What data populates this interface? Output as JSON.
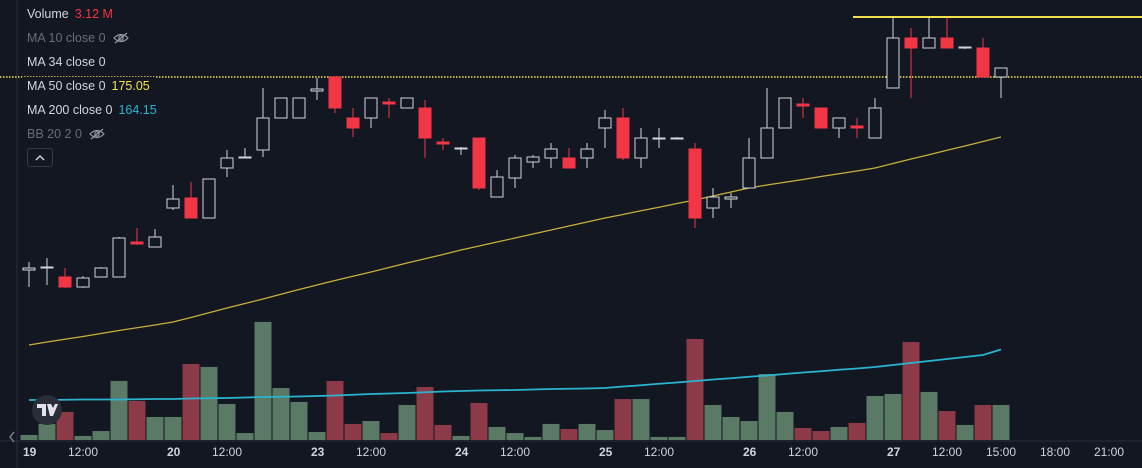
{
  "chart_data": {
    "type": "candlestick",
    "categories": [
      "19",
      null,
      null,
      "12:00",
      null,
      null,
      null,
      null,
      "20",
      null,
      null,
      "12:00",
      null,
      null,
      null,
      null,
      "23",
      null,
      null,
      "12:00",
      null,
      null,
      null,
      null,
      "24",
      null,
      null,
      "12:00",
      null,
      null,
      null,
      null,
      "25",
      null,
      null,
      "12:00",
      null,
      null,
      null,
      null,
      "26",
      null,
      null,
      "12:00",
      null,
      null,
      null,
      null,
      "27",
      null,
      null,
      "12:00",
      null,
      null,
      "15:00"
    ],
    "future_ticks": [
      "18:00",
      "21:00"
    ],
    "open": [
      167.33,
      167.41,
      167.05,
      166.65,
      167.05,
      167.05,
      168.45,
      168.25,
      169.81,
      170.21,
      169.41,
      171.41,
      171.81,
      172.13,
      173.41,
      173.41,
      174.49,
      175.05,
      173.41,
      173.41,
      174.05,
      173.81,
      173.81,
      172.45,
      172.17,
      172.61,
      170.25,
      171.01,
      171.65,
      171.81,
      171.81,
      171.81,
      173.01,
      173.41,
      171.81,
      172.57,
      172.57,
      172.17,
      169.81,
      170.17,
      170.61,
      171.81,
      173.01,
      173.97,
      173.81,
      173.01,
      173.09,
      172.61,
      174.61,
      176.61,
      176.21,
      176.61,
      176.21,
      176.21,
      175.05
    ],
    "high": [
      167.65,
      167.81,
      167.41,
      167.09,
      167.45,
      168.65,
      169.01,
      168.97,
      170.73,
      170.85,
      170.97,
      172.13,
      172.21,
      174.61,
      174.21,
      174.21,
      175.01,
      175.05,
      173.81,
      174.21,
      174.21,
      174.21,
      174.13,
      172.61,
      172.25,
      172.61,
      171.33,
      171.93,
      171.93,
      172.41,
      172.21,
      172.41,
      173.73,
      173.81,
      173.01,
      173.01,
      172.65,
      172.41,
      170.61,
      170.41,
      172.61,
      174.61,
      174.21,
      174.21,
      173.81,
      173.41,
      173.41,
      174.21,
      177.41,
      177.01,
      177.41,
      177.41,
      176.25,
      176.61,
      175.41
    ],
    "low": [
      166.65,
      166.73,
      166.61,
      166.61,
      167.05,
      167.05,
      168.33,
      168.25,
      169.73,
      169.41,
      169.41,
      171.05,
      171.81,
      171.85,
      173.41,
      173.41,
      174.13,
      173.61,
      172.65,
      173.01,
      173.41,
      173.81,
      171.81,
      172.13,
      171.93,
      170.53,
      170.25,
      170.61,
      171.41,
      171.41,
      171.41,
      171.41,
      172.21,
      171.73,
      171.41,
      172.21,
      172.57,
      169.01,
      169.41,
      169.81,
      170.61,
      171.81,
      173.01,
      173.41,
      173.01,
      172.61,
      172.61,
      172.61,
      174.61,
      174.21,
      176.21,
      176.21,
      176.17,
      175.05,
      174.21
    ],
    "close": [
      167.41,
      167.45,
      166.65,
      167.01,
      167.41,
      168.61,
      168.37,
      168.65,
      170.17,
      169.41,
      170.97,
      171.81,
      171.85,
      173.41,
      174.21,
      174.21,
      174.57,
      173.81,
      173.01,
      174.21,
      173.97,
      174.21,
      172.61,
      172.37,
      172.21,
      170.61,
      171.05,
      171.81,
      171.85,
      172.17,
      171.41,
      172.17,
      173.41,
      171.81,
      172.61,
      172.61,
      172.61,
      169.41,
      170.25,
      170.25,
      171.81,
      173.01,
      174.21,
      173.89,
      173.01,
      173.41,
      173.01,
      173.81,
      176.61,
      176.21,
      176.61,
      176.21,
      176.25,
      175.05,
      175.41
    ],
    "ylim": [
      160.53,
      178.13
    ],
    "up_color": "#d1d4dc",
    "down_color": "#f23645",
    "volume": {
      "values": [
        0.45,
        1.43,
        2.5,
        0.36,
        0.8,
        5.26,
        3.48,
        2.05,
        2.05,
        6.77,
        6.51,
        3.21,
        0.62,
        10.52,
        4.63,
        3.39,
        0.71,
        5.26,
        1.43,
        1.69,
        0.62,
        3.12,
        4.72,
        1.34,
        0.36,
        3.3,
        1.16,
        0.62,
        0.27,
        1.43,
        0.98,
        1.43,
        0.89,
        3.65,
        3.65,
        0.27,
        0.27,
        9.0,
        3.12,
        2.05,
        1.69,
        5.88,
        2.5,
        1.07,
        0.8,
        1.16,
        1.52,
        3.92,
        4.1,
        8.73,
        4.28,
        2.58,
        1.34,
        3.12,
        3.12
      ],
      "ylim": [
        0,
        39.2
      ],
      "up_color": "#5b7a66",
      "down_color": "#8c3a48"
    },
    "lines": [
      {
        "color": "#c9b03c",
        "values": [
          164.33,
          164.45,
          164.56,
          164.67,
          164.79,
          164.91,
          165.02,
          165.13,
          165.25,
          165.43,
          165.62,
          165.81,
          165.99,
          166.17,
          166.36,
          166.55,
          166.73,
          166.91,
          167.08,
          167.25,
          167.43,
          167.61,
          167.78,
          167.95,
          168.13,
          168.29,
          168.45,
          168.61,
          168.77,
          168.93,
          169.09,
          169.25,
          169.41,
          169.55,
          169.7,
          169.84,
          169.99,
          170.13,
          170.29,
          170.45,
          170.61,
          170.73,
          170.84,
          170.95,
          171.07,
          171.18,
          171.29,
          171.41,
          171.59,
          171.77,
          171.94,
          172.12,
          172.29,
          172.47,
          172.65
        ]
      },
      {
        "color": "#2bb4d0",
        "values": [
          162.13,
          162.13,
          162.14,
          162.15,
          162.15,
          162.15,
          162.16,
          162.17,
          162.17,
          162.19,
          162.2,
          162.21,
          162.23,
          162.25,
          162.26,
          162.27,
          162.29,
          162.31,
          162.34,
          162.37,
          162.39,
          162.41,
          162.44,
          162.47,
          162.49,
          162.51,
          162.52,
          162.53,
          162.55,
          162.57,
          162.58,
          162.59,
          162.61,
          162.67,
          162.72,
          162.78,
          162.83,
          162.89,
          162.95,
          163.0,
          163.06,
          163.11,
          163.17,
          163.23,
          163.28,
          163.34,
          163.39,
          163.45,
          163.53,
          163.61,
          163.69,
          163.77,
          163.85,
          163.93,
          164.15
        ]
      }
    ],
    "hlines": [
      {
        "value": 177.45,
        "style": "solid",
        "color": "#f5e24a"
      },
      {
        "value": 175.05,
        "style": "dotted",
        "color": "#f5e24a"
      }
    ],
    "legend": [
      {
        "label": "Volume",
        "value": 3.12,
        "value_label": "3.12 M",
        "color": "#f23645"
      },
      {
        "label": "MA 10 close 0",
        "hidden": true
      },
      {
        "label": "MA 34 close 0"
      },
      {
        "label": "MA 50 close 0",
        "value": 175.05,
        "color": "#f5e24a"
      },
      {
        "label": "MA 200 close 0",
        "value": 164.15,
        "color": "#2bb4d0"
      },
      {
        "label": "BB 20 2 0",
        "hidden": true
      }
    ]
  }
}
